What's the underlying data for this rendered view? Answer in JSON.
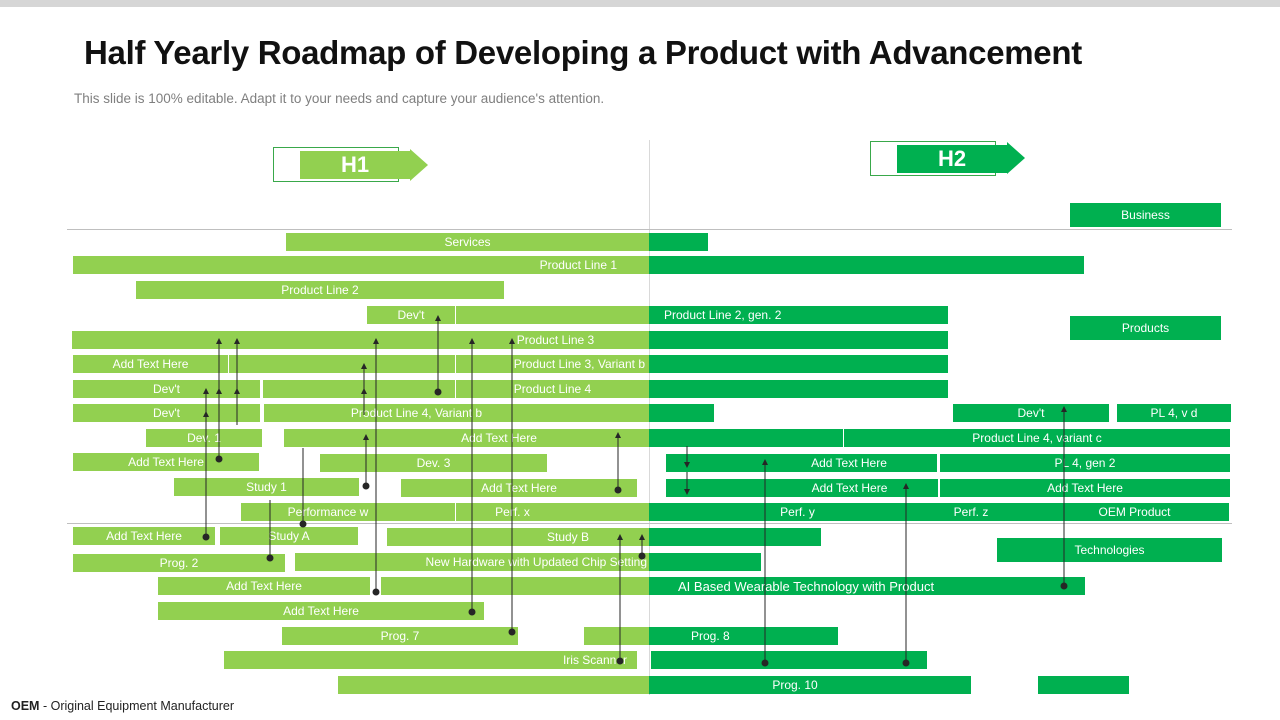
{
  "title": "Half Yearly Roadmap of Developing a Product with Advancement",
  "subtitle": "This slide is 100% editable. Adapt it to your needs and capture your audience's attention.",
  "footnote": {
    "abbr": "OEM",
    "rest": " - Original  Equipment  Manufacturer"
  },
  "halves": {
    "h1": "H1",
    "h2": "H2"
  },
  "categories": {
    "business": "Business",
    "products": "Products",
    "technologies": "Technologies"
  },
  "colors": {
    "light_green": "#92d050",
    "dark_green": "#00b050",
    "divider": "#bfbfbf"
  },
  "bars": {
    "services": "Services",
    "product_line_1": "Product Line 1",
    "product_line_2": "Product Line 2",
    "devt_a": "Dev't",
    "product_line_2_gen_2": "Product Line 2, gen. 2",
    "product_line_3": "Product Line 3",
    "add_text_r1": "Add Text Here",
    "product_line_3_variant_b": "Product Line 3, Variant b",
    "devt_b": "Dev't",
    "product_line_4": "Product Line 4",
    "devt_c": "Dev't",
    "product_line_4_variant_b": "Product Line 4, Variant b",
    "devt_d": "Dev't",
    "pl4_vd": "PL 4, v d",
    "dev_1": "Dev. 1",
    "add_text_r2": "Add Text Here",
    "product_line_4_variant_c": "Product Line 4, variant c",
    "add_text_r3": "Add Text Here",
    "dev_3": "Dev. 3",
    "add_text_r4": "Add Text Here",
    "pl4_gen2": "PL 4, gen 2",
    "study_1": "Study 1",
    "add_text_r5": "Add Text Here",
    "add_text_r6": "Add Text Here",
    "add_text_r7": "Add Text Here",
    "performance_w": "Performance w",
    "perf_x": "Perf. x",
    "perf_y": "Perf. y",
    "perf_z": "Perf. z",
    "oem_product": "OEM Product",
    "add_text_r8": "Add Text Here",
    "study_a": "Study A",
    "study_b": "Study B",
    "prog_2": "Prog. 2",
    "new_hardware": "New Hardware with Updated Chip Setting",
    "add_text_r9": "Add Text Here",
    "ai_wearable": "AI Based Wearable  Technology  with Product",
    "add_text_r10": "Add Text Here",
    "prog_7": "Prog. 7",
    "prog_8": "Prog. 8",
    "iris_scanner": "Iris Scanner",
    "prog_10": "Prog. 10"
  }
}
